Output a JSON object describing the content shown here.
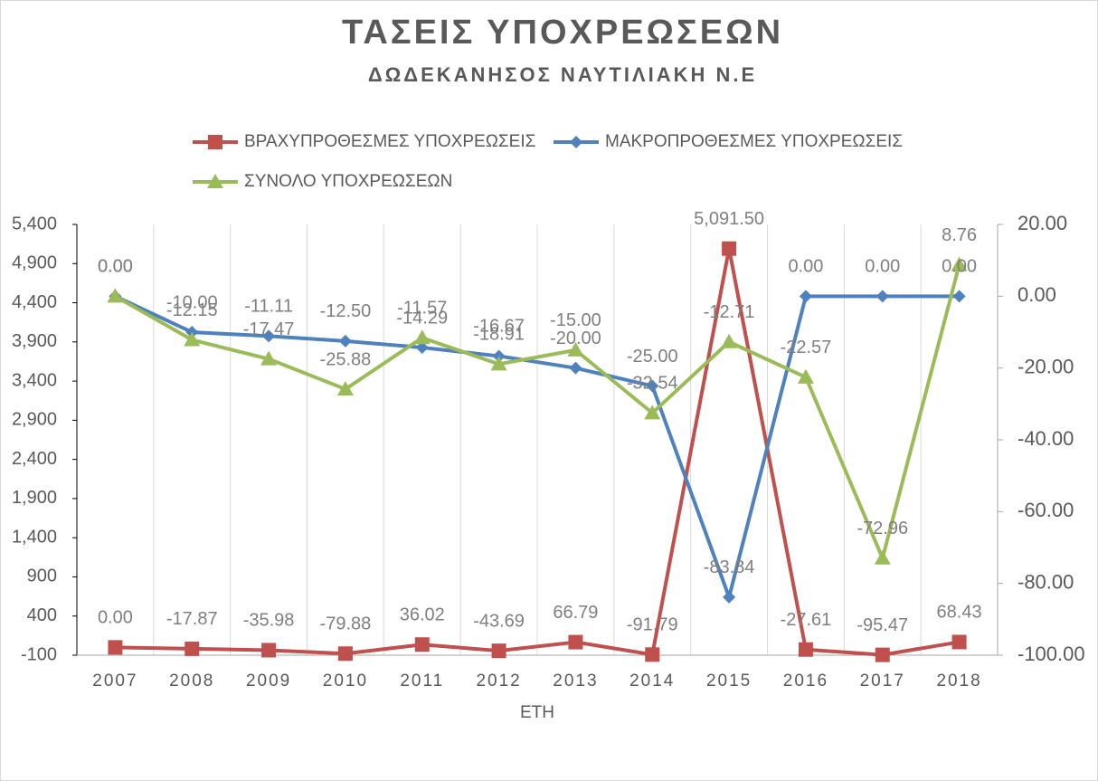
{
  "chart_data": {
    "type": "line",
    "title": "ΤΑΣΕΙΣ ΥΠΟΧΡΕΩΣΕΩΝ",
    "subtitle": "ΔΩΔΕΚΑΝΗΣΟΣ ΝΑΥΤΙΛΙΑΚΗ Ν.Ε",
    "x_label": "ΕΤΗ",
    "categories": [
      "2007",
      "2008",
      "2009",
      "2010",
      "2011",
      "2012",
      "2013",
      "2014",
      "2015",
      "2016",
      "2017",
      "2018"
    ],
    "series": [
      {
        "name": "ΒΡΑΧΥΠΡΟΘΕΣΜΕΣ ΥΠΟΧΡΕΩΣΕΙΣ",
        "color": "#c0504d",
        "marker": "square",
        "axis": "y",
        "values": [
          0,
          -17.87,
          -35.98,
          -79.88,
          36.02,
          -43.69,
          66.79,
          -91.79,
          5091.5,
          -27.61,
          -95.47,
          68.43
        ],
        "value_labels": [
          "0.00",
          "-17.87",
          "-35.98",
          "-79.88",
          "36.02",
          "-43.69",
          "66.79",
          "-91.79",
          "5,091.50",
          "-27.61",
          "-95.47",
          "68.43"
        ]
      },
      {
        "name": "ΜΑΚΡΟΠΡΟΘΕΣΜΕΣ ΥΠΟΧΡΕΩΣΕΙΣ",
        "color": "#4f81bd",
        "marker": "diamond",
        "axis": "y2",
        "values": [
          0,
          -10,
          -11.11,
          -12.5,
          -14.29,
          -16.67,
          -20,
          -25,
          -83.84,
          0,
          0,
          0
        ],
        "value_labels": [
          "0.00",
          "-10.00",
          "-11.11",
          "-12.50",
          "-14.29",
          "-16.67",
          "-20.00",
          "-25.00",
          "-83.84",
          "0.00",
          "0.00",
          "0.00"
        ]
      },
      {
        "name": "ΣΥΝΟΛΟ ΥΠΟΧΡΕΩΣΕΩΝ",
        "color": "#9bbb59",
        "marker": "triangle",
        "axis": "y2",
        "values": [
          0,
          -12.15,
          -17.47,
          -25.88,
          -11.57,
          -18.91,
          -15,
          -32.54,
          -12.71,
          -22.57,
          -72.96,
          8.76
        ],
        "value_labels": [
          "0.00",
          "-12.15",
          "-17.47",
          "-25.88",
          "-11.57",
          "-18.91",
          "-15.00",
          "-32.54",
          "-12.71",
          "-22.57",
          "-72.96",
          "8.76"
        ]
      }
    ],
    "ylim": [
      -100,
      5400
    ],
    "yticks": [
      -100,
      400,
      900,
      {
        "value": 1400,
        "label": "1,400"
      },
      {
        "value": 1900,
        "label": "1,900"
      },
      {
        "value": 2400,
        "label": "2,400"
      },
      {
        "value": 2900,
        "label": "2,900"
      },
      {
        "value": 3400,
        "label": "3,400"
      },
      {
        "value": 3900,
        "label": "3,900"
      },
      {
        "value": 4400,
        "label": "4,400"
      },
      {
        "value": 4900,
        "label": "4,900"
      },
      {
        "value": 5400,
        "label": "5,400"
      }
    ],
    "y2lim": [
      -100,
      20
    ],
    "y2ticks": [
      {
        "value": -100,
        "label": "-100.00"
      },
      {
        "value": -80,
        "label": "-80.00"
      },
      {
        "value": -60,
        "label": "-60.00"
      },
      {
        "value": -40,
        "label": "-40.00"
      },
      {
        "value": -20,
        "label": "-20.00"
      },
      {
        "value": 0,
        "label": "0.00"
      },
      {
        "value": 20,
        "label": "20.00"
      }
    ],
    "grid": true,
    "legend": "top"
  }
}
